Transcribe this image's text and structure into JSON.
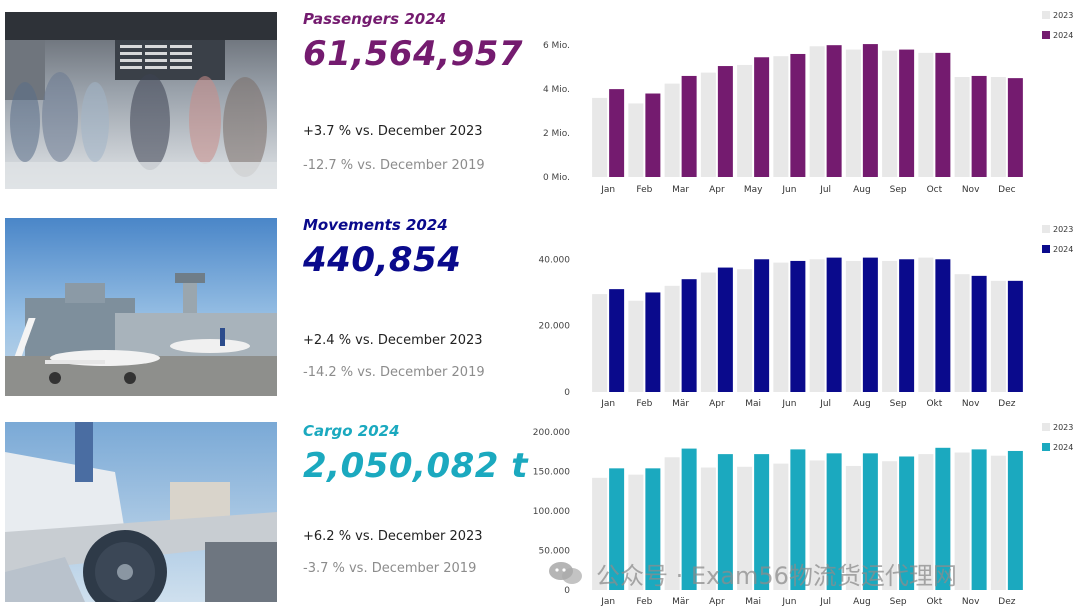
{
  "colors": {
    "passengers": "#741b6f",
    "movements": "#0a0a8c",
    "cargo": "#1ba9bf",
    "bar2023": "#e8e8e8",
    "grey_text": "#8c8c8c"
  },
  "sections": [
    {
      "key": "passengers",
      "title": "Passengers 2024",
      "value": "61,564,957",
      "vs2023": "+3.7 % vs. December 2023",
      "vs2019": "-12.7 % vs. December 2019",
      "photo_icon": "airport-terminal-photo"
    },
    {
      "key": "movements",
      "title": "Movements 2024",
      "value": "440,854",
      "vs2023": "+2.4 % vs. December 2023",
      "vs2019": "-14.2 % vs. December 2019",
      "photo_icon": "airport-apron-photo"
    },
    {
      "key": "cargo",
      "title": "Cargo 2024",
      "value": "2,050,082 t",
      "vs2023": "+6.2 % vs. December 2023",
      "vs2019": "-3.7 % vs. December 2019",
      "photo_icon": "cargo-loading-photo"
    }
  ],
  "chart_data": [
    {
      "type": "bar",
      "categories": [
        "Jan",
        "Feb",
        "Mar",
        "Apr",
        "May",
        "Jun",
        "Jul",
        "Aug",
        "Sep",
        "Oct",
        "Nov",
        "Dec"
      ],
      "series": [
        {
          "name": "2023",
          "values": [
            3.6,
            3.35,
            4.25,
            4.75,
            5.1,
            5.5,
            5.95,
            5.8,
            5.75,
            5.65,
            4.55,
            4.55
          ]
        },
        {
          "name": "2024",
          "values": [
            4.0,
            3.8,
            4.6,
            5.05,
            5.45,
            5.6,
            6.0,
            6.05,
            5.8,
            5.65,
            4.6,
            4.5
          ]
        }
      ],
      "yticks": [
        0,
        2,
        4,
        6
      ],
      "ytick_labels": [
        "0 Mio.",
        "2 Mio.",
        "4 Mio.",
        "6 Mio."
      ],
      "ylim": [
        0,
        6.6
      ],
      "legend": "top-right",
      "grid": false
    },
    {
      "type": "bar",
      "categories": [
        "Jan",
        "Feb",
        "Mär",
        "Apr",
        "Mai",
        "Jun",
        "Jul",
        "Aug",
        "Sep",
        "Okt",
        "Nov",
        "Dez"
      ],
      "series": [
        {
          "name": "2023",
          "values": [
            29500,
            27500,
            32000,
            36000,
            37000,
            39000,
            40000,
            39500,
            39500,
            40500,
            35500,
            33500
          ]
        },
        {
          "name": "2024",
          "values": [
            31000,
            30000,
            34000,
            37500,
            40000,
            39500,
            40500,
            40500,
            40000,
            40000,
            35000,
            33500
          ]
        }
      ],
      "yticks": [
        0,
        20000,
        40000
      ],
      "ytick_labels": [
        "0",
        "20.000",
        "40.000"
      ],
      "ylim": [
        0,
        44000
      ],
      "legend": "top-right",
      "grid": false
    },
    {
      "type": "bar",
      "categories": [
        "Jan",
        "Feb",
        "Mär",
        "Apr",
        "Mai",
        "Jun",
        "Jul",
        "Aug",
        "Sep",
        "Okt",
        "Nov",
        "Dez"
      ],
      "series": [
        {
          "name": "2023",
          "values": [
            142000,
            146000,
            168000,
            155000,
            156000,
            160000,
            164000,
            157000,
            163000,
            172000,
            174000,
            170000
          ]
        },
        {
          "name": "2024",
          "values": [
            154000,
            154000,
            179000,
            172000,
            172000,
            178000,
            173000,
            173000,
            169000,
            180000,
            178000,
            176000
          ]
        }
      ],
      "yticks": [
        50000,
        100000,
        150000,
        200000
      ],
      "ytick_labels": [
        "50.000",
        "100.000",
        "150.000",
        "200.000"
      ],
      "ylim": [
        0,
        200000
      ],
      "ybase_label": "0",
      "legend": "top-right",
      "grid": false
    }
  ],
  "watermark": "公众号 · Exam56物流货运代理网"
}
